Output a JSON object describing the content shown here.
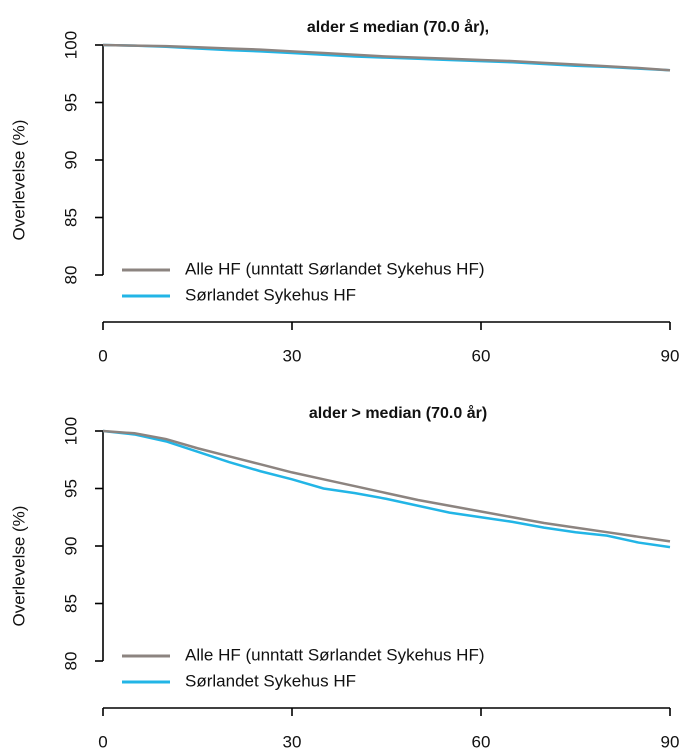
{
  "chart_data": [
    {
      "type": "line",
      "title": "alder ≤ median (70.0 år),",
      "y_label": "Overlevelse (%)",
      "x": [
        0,
        5,
        10,
        15,
        20,
        25,
        30,
        35,
        40,
        45,
        50,
        55,
        60,
        65,
        70,
        75,
        80,
        85,
        90
      ],
      "series": [
        {
          "name": "Alle HF (unntatt Sørlandet Sykehus HF)",
          "color": "#8c8480",
          "values": [
            100,
            99.95,
            99.9,
            99.8,
            99.7,
            99.6,
            99.45,
            99.3,
            99.15,
            99.0,
            98.9,
            98.8,
            98.7,
            98.6,
            98.45,
            98.3,
            98.15,
            98.0,
            97.8
          ]
        },
        {
          "name": "Sørlandet Sykehus HF",
          "color": "#22b5e6",
          "values": [
            100,
            99.95,
            99.85,
            99.7,
            99.55,
            99.45,
            99.3,
            99.15,
            99.0,
            98.9,
            98.8,
            98.7,
            98.6,
            98.5,
            98.35,
            98.2,
            98.1,
            97.95,
            97.8
          ]
        }
      ],
      "xlim": [
        0,
        90
      ],
      "xticks": [
        0,
        30,
        60,
        90
      ],
      "ylim": [
        80,
        100
      ],
      "yticks": [
        80,
        85,
        90,
        95,
        100
      ]
    },
    {
      "type": "line",
      "title": "alder > median (70.0 år)",
      "y_label": "Overlevelse (%)",
      "x": [
        0,
        5,
        10,
        15,
        20,
        25,
        30,
        35,
        40,
        45,
        50,
        55,
        60,
        65,
        70,
        75,
        80,
        85,
        90
      ],
      "series": [
        {
          "name": "Alle HF (unntatt Sørlandet Sykehus HF)",
          "color": "#8c8480",
          "values": [
            100,
            99.8,
            99.3,
            98.5,
            97.8,
            97.1,
            96.4,
            95.8,
            95.2,
            94.6,
            94.0,
            93.5,
            93.0,
            92.5,
            92.0,
            91.6,
            91.2,
            90.8,
            90.4
          ]
        },
        {
          "name": "Sørlandet Sykehus HF",
          "color": "#22b5e6",
          "values": [
            100,
            99.7,
            99.1,
            98.2,
            97.3,
            96.5,
            95.8,
            95.0,
            94.6,
            94.1,
            93.5,
            92.9,
            92.5,
            92.1,
            91.6,
            91.2,
            90.9,
            90.3,
            89.9
          ]
        }
      ],
      "xlim": [
        0,
        90
      ],
      "xticks": [
        0,
        30,
        60,
        90
      ],
      "ylim": [
        80,
        100
      ],
      "yticks": [
        80,
        85,
        90,
        95,
        100
      ]
    }
  ]
}
